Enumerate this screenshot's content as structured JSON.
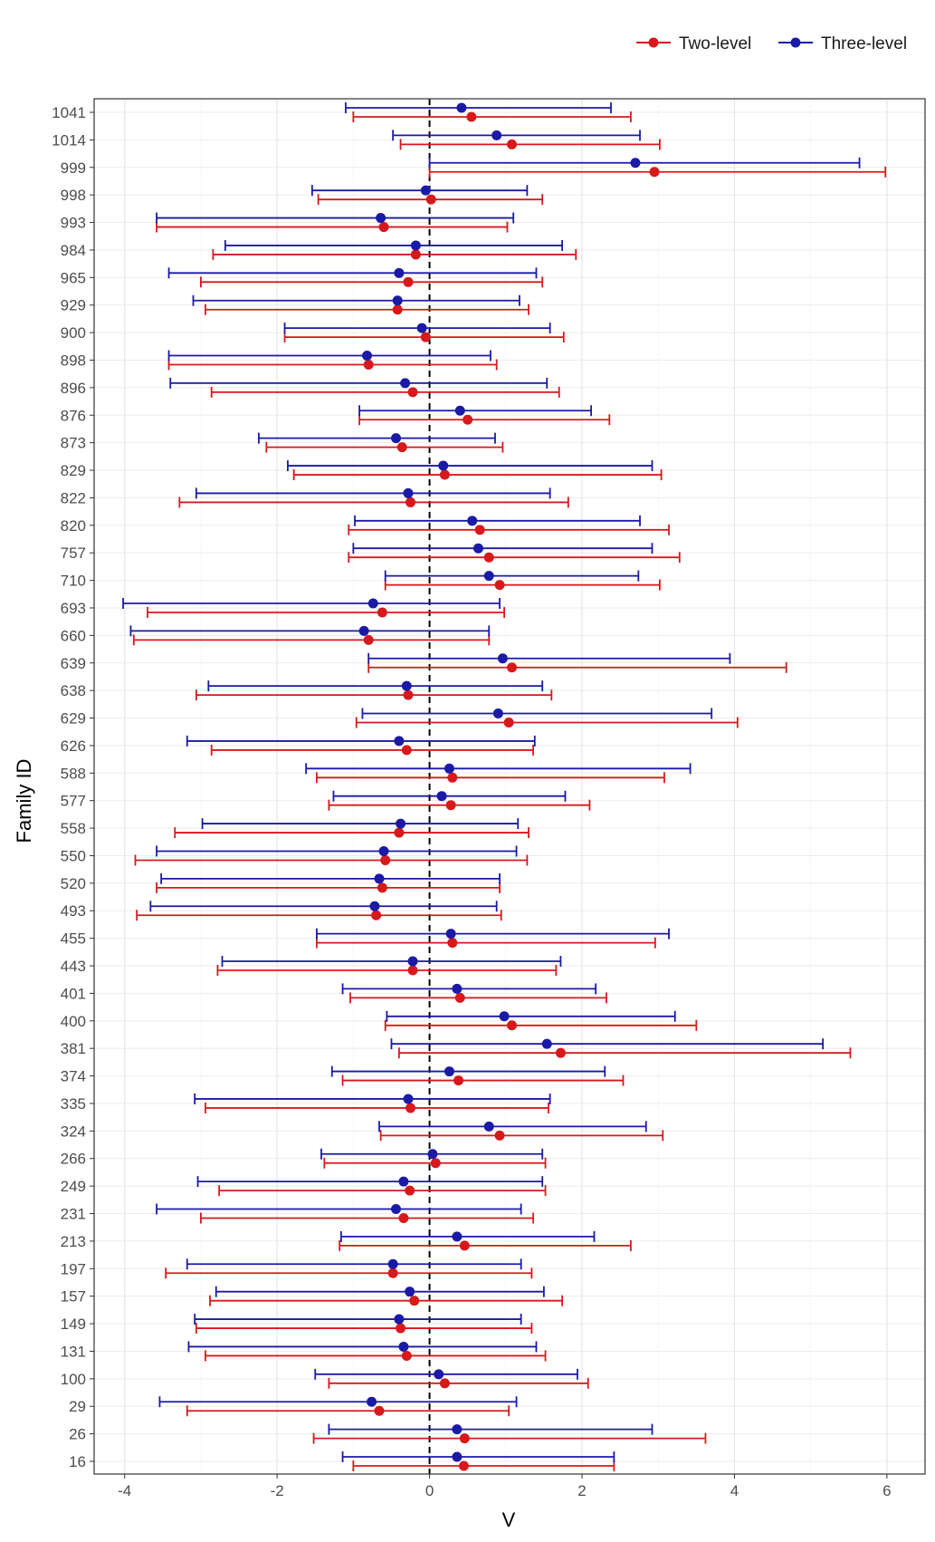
{
  "chart_data": {
    "type": "forest",
    "xlabel": "V",
    "ylabel": "Family ID",
    "xlim": [
      -4.4,
      6.5
    ],
    "xticks": [
      -4,
      -2,
      0,
      2,
      4,
      6
    ],
    "xtick_labels": [
      "-4",
      "-2",
      "0",
      "2",
      "4",
      "6"
    ],
    "reference_line": 0,
    "legend_position": "top-right",
    "grid": true,
    "categories": [
      "1041",
      "1014",
      "999",
      "998",
      "993",
      "984",
      "965",
      "929",
      "900",
      "898",
      "896",
      "876",
      "873",
      "829",
      "822",
      "820",
      "757",
      "710",
      "693",
      "660",
      "639",
      "638",
      "629",
      "626",
      "588",
      "577",
      "558",
      "550",
      "520",
      "493",
      "455",
      "443",
      "401",
      "400",
      "381",
      "374",
      "335",
      "324",
      "266",
      "249",
      "231",
      "213",
      "197",
      "157",
      "149",
      "131",
      "100",
      "29",
      "26",
      "16"
    ],
    "series": [
      {
        "name": "Two-level",
        "color": "#d7191c",
        "estimate": [
          0.55,
          1.08,
          2.95,
          0.02,
          -0.6,
          -0.18,
          -0.28,
          -0.42,
          -0.05,
          -0.8,
          -0.22,
          0.5,
          -0.36,
          0.2,
          -0.25,
          0.66,
          0.78,
          0.92,
          -0.62,
          -0.8,
          1.08,
          -0.28,
          1.04,
          -0.3,
          0.3,
          0.28,
          -0.4,
          -0.58,
          -0.62,
          -0.7,
          0.3,
          -0.22,
          0.4,
          1.08,
          1.72,
          0.38,
          -0.25,
          0.92,
          0.08,
          -0.26,
          -0.34,
          0.46,
          -0.48,
          -0.2,
          -0.38,
          -0.3,
          0.2,
          -0.66,
          0.46,
          0.45
        ],
        "lower": [
          -1.0,
          -0.38,
          0.0,
          -1.46,
          -3.58,
          -2.84,
          -3.0,
          -2.94,
          -1.9,
          -3.42,
          -2.86,
          -0.92,
          -2.14,
          -1.78,
          -3.28,
          -1.06,
          -1.06,
          -0.58,
          -3.7,
          -3.88,
          -0.8,
          -3.06,
          -0.96,
          -2.86,
          -1.48,
          -1.32,
          -3.34,
          -3.86,
          -3.58,
          -3.84,
          -1.48,
          -2.78,
          -1.04,
          -0.58,
          -0.4,
          -1.14,
          -2.94,
          -0.64,
          -1.38,
          -2.76,
          -3.0,
          -1.18,
          -3.46,
          -2.88,
          -3.06,
          -2.94,
          -1.32,
          -3.18,
          -1.52,
          -1.0
        ],
        "upper": [
          2.64,
          3.02,
          5.98,
          1.48,
          1.02,
          1.92,
          1.48,
          1.3,
          1.76,
          0.88,
          1.7,
          2.36,
          0.96,
          3.04,
          1.82,
          3.14,
          3.28,
          3.02,
          0.98,
          0.78,
          4.68,
          1.6,
          4.04,
          1.36,
          3.08,
          2.1,
          1.3,
          1.28,
          0.92,
          0.94,
          2.96,
          1.66,
          2.32,
          3.5,
          5.52,
          2.54,
          1.56,
          3.06,
          1.52,
          1.52,
          1.36,
          2.64,
          1.34,
          1.74,
          1.34,
          1.52,
          2.08,
          1.04,
          3.62,
          2.42
        ]
      },
      {
        "name": "Three-level",
        "color": "#1a1aa6",
        "estimate": [
          0.42,
          0.88,
          2.7,
          -0.05,
          -0.64,
          -0.18,
          -0.4,
          -0.42,
          -0.1,
          -0.82,
          -0.32,
          0.4,
          -0.44,
          0.18,
          -0.28,
          0.56,
          0.64,
          0.78,
          -0.74,
          -0.86,
          0.96,
          -0.3,
          0.9,
          -0.4,
          0.26,
          0.16,
          -0.38,
          -0.6,
          -0.66,
          -0.72,
          0.28,
          -0.22,
          0.36,
          0.98,
          1.54,
          0.26,
          -0.28,
          0.78,
          0.04,
          -0.34,
          -0.44,
          0.36,
          -0.48,
          -0.26,
          -0.4,
          -0.34,
          0.12,
          -0.76,
          0.36,
          0.36
        ],
        "lower": [
          -1.1,
          -0.48,
          0.0,
          -1.54,
          -3.58,
          -2.68,
          -3.42,
          -3.1,
          -1.9,
          -3.42,
          -3.4,
          -0.92,
          -2.24,
          -1.86,
          -3.06,
          -0.98,
          -1.0,
          -0.58,
          -4.02,
          -3.92,
          -0.8,
          -2.9,
          -0.88,
          -3.18,
          -1.62,
          -1.26,
          -2.98,
          -3.58,
          -3.52,
          -3.66,
          -1.48,
          -2.72,
          -1.14,
          -0.56,
          -0.5,
          -1.28,
          -3.08,
          -0.66,
          -1.42,
          -3.04,
          -3.58,
          -1.16,
          -3.18,
          -2.8,
          -3.08,
          -3.16,
          -1.5,
          -3.54,
          -1.32,
          -1.14
        ],
        "upper": [
          2.38,
          2.76,
          5.64,
          1.28,
          1.1,
          1.74,
          1.4,
          1.18,
          1.58,
          0.8,
          1.54,
          2.12,
          0.86,
          2.92,
          1.58,
          2.76,
          2.92,
          2.74,
          0.92,
          0.78,
          3.94,
          1.48,
          3.7,
          1.38,
          3.42,
          1.78,
          1.16,
          1.14,
          0.92,
          0.88,
          3.14,
          1.72,
          2.18,
          3.22,
          5.16,
          2.3,
          1.58,
          2.84,
          1.48,
          1.48,
          1.2,
          2.16,
          1.2,
          1.5,
          1.2,
          1.4,
          1.94,
          1.14,
          2.92,
          2.42
        ]
      }
    ]
  }
}
